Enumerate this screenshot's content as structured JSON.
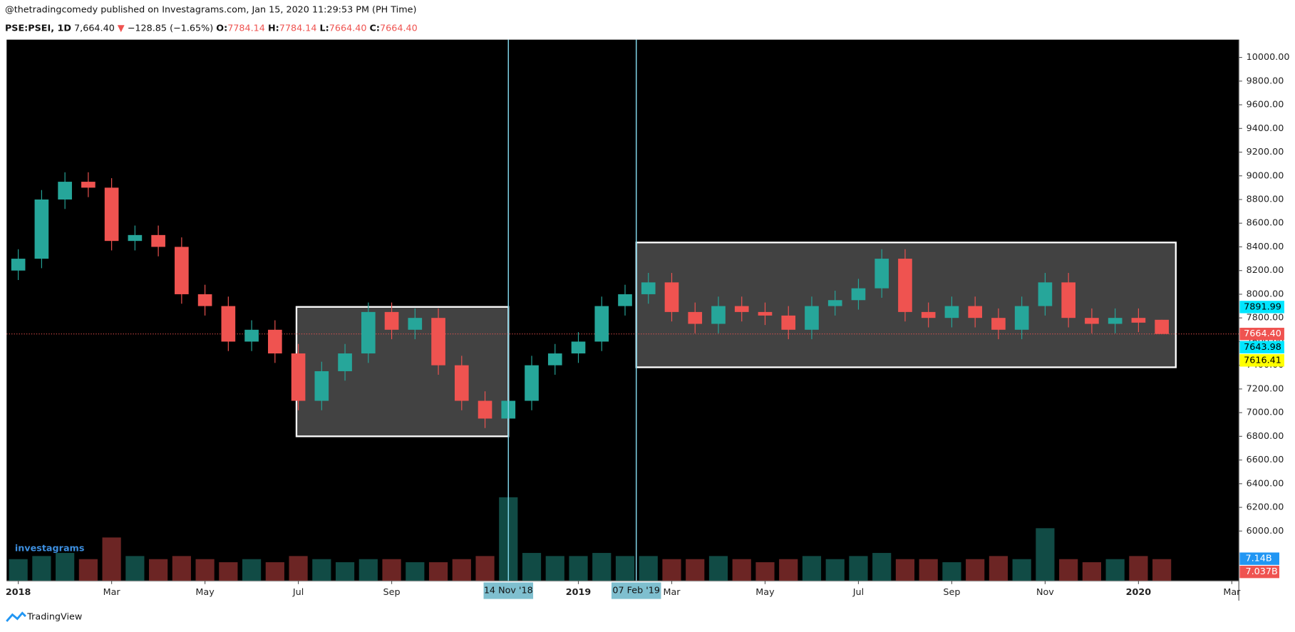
{
  "header": {
    "published": "@thetradingcomedy published on Investagrams.com, Jan 15, 2020 11:29:53 PM (PH Time)",
    "symbol": "PSE:PSEI, 1D",
    "last": "7,664.40",
    "arrow": "▼",
    "change": "−128.85 (−1.65%)",
    "o_label": "O:",
    "o": "7784.14",
    "h_label": "H:",
    "h": "7784.14",
    "l_label": "L:",
    "l": "7664.40",
    "c_label": "C:",
    "c": "7664.40"
  },
  "logo": "investagrams",
  "footer": "TradingView",
  "chart_data": {
    "type": "candlestick",
    "x": [
      0,
      0.5,
      1,
      1.5,
      2,
      2.5,
      3,
      3.5,
      4,
      4.5,
      5,
      5.5,
      6,
      6.5,
      7,
      7.5,
      8,
      8.5,
      9,
      9.5,
      10,
      10.5,
      11,
      11.5,
      12,
      12.5,
      13,
      13.5,
      14,
      14.5,
      15,
      15.5,
      16,
      16.5,
      17,
      17.5,
      18,
      18.5,
      19,
      19.5,
      20,
      20.5,
      21,
      21.5,
      22,
      22.5,
      23,
      23.5,
      24,
      24.5
    ],
    "open": [
      8200,
      8300,
      8800,
      8950,
      8900,
      8450,
      8500,
      8400,
      8000,
      7900,
      7600,
      7700,
      7500,
      7100,
      7350,
      7500,
      7850,
      7700,
      7800,
      7400,
      7100,
      6950,
      7100,
      7400,
      7500,
      7600,
      7900,
      8000,
      8100,
      7850,
      7750,
      7900,
      7850,
      7820,
      7700,
      7900,
      7950,
      8050,
      8300,
      7850,
      7800,
      7900,
      7800,
      7700,
      7900,
      8100,
      7800,
      7750,
      7800,
      7784.14
    ],
    "high": [
      8380,
      8880,
      9030,
      9030,
      8980,
      8580,
      8580,
      8480,
      8080,
      7980,
      7780,
      7780,
      7580,
      7430,
      7580,
      7930,
      7930,
      7880,
      7880,
      7480,
      7180,
      7180,
      7480,
      7580,
      7680,
      7980,
      8080,
      8180,
      8180,
      7930,
      7980,
      7980,
      7930,
      7900,
      7980,
      8030,
      8130,
      8380,
      8380,
      7930,
      7980,
      7980,
      7880,
      7980,
      8180,
      8180,
      7880,
      7880,
      7880,
      7784.14
    ],
    "low": [
      8120,
      8220,
      8720,
      8820,
      8370,
      8370,
      8320,
      7920,
      7820,
      7520,
      7520,
      7420,
      7020,
      7020,
      7270,
      7420,
      7620,
      7620,
      7320,
      7020,
      6870,
      6870,
      7020,
      7320,
      7420,
      7520,
      7820,
      7920,
      7770,
      7670,
      7670,
      7770,
      7740,
      7620,
      7620,
      7820,
      7870,
      7970,
      7770,
      7720,
      7720,
      7720,
      7620,
      7620,
      7820,
      7720,
      7670,
      7670,
      7680,
      7664.4
    ],
    "close": [
      8300,
      8800,
      8950,
      8900,
      8450,
      8500,
      8400,
      8000,
      7900,
      7600,
      7700,
      7500,
      7100,
      7350,
      7500,
      7850,
      7700,
      7800,
      7400,
      7100,
      6950,
      7100,
      7400,
      7500,
      7600,
      7900,
      8000,
      8100,
      7850,
      7750,
      7900,
      7850,
      7820,
      7700,
      7900,
      7950,
      8050,
      8300,
      7850,
      7800,
      7900,
      7800,
      7700,
      7900,
      8100,
      7800,
      7750,
      7800,
      7760,
      7664.4
    ],
    "volume": [
      7,
      8,
      9,
      7,
      14,
      8,
      7,
      8,
      7,
      6,
      7,
      6,
      8,
      7,
      6,
      7,
      7,
      6,
      6,
      7,
      8,
      27,
      9,
      8,
      8,
      9,
      8,
      8,
      7,
      7,
      8,
      7,
      6,
      7,
      8,
      7,
      8,
      9,
      7,
      7,
      6,
      7,
      8,
      7,
      17,
      7,
      6,
      7,
      8,
      7
    ],
    "up_color": "#26a69a",
    "down_color": "#ef5350",
    "xlim": [
      -0.25,
      26.15
    ],
    "xticks": [
      {
        "value": 0,
        "label": "2018"
      },
      {
        "value": 2,
        "label": "Mar"
      },
      {
        "value": 4,
        "label": "May"
      },
      {
        "value": 6,
        "label": "Jul"
      },
      {
        "value": 8,
        "label": "Sep"
      },
      {
        "value": 12,
        "label": "2019"
      },
      {
        "value": 14,
        "label": "Mar"
      },
      {
        "value": 16,
        "label": "May"
      },
      {
        "value": 18,
        "label": "Jul"
      },
      {
        "value": 20,
        "label": "Sep"
      },
      {
        "value": 22,
        "label": "Nov"
      },
      {
        "value": 24,
        "label": "2020"
      },
      {
        "value": 26,
        "label": "Mar"
      }
    ],
    "ylim": [
      5580,
      10150
    ],
    "yticks": [
      {
        "value": 6000,
        "label": "6000.00"
      },
      {
        "value": 6200,
        "label": "6200.00"
      },
      {
        "value": 6400,
        "label": "6400.00"
      },
      {
        "value": 6600,
        "label": "6600.00"
      },
      {
        "value": 6800,
        "label": "6800.00"
      },
      {
        "value": 7000,
        "label": "7000.00"
      },
      {
        "value": 7200,
        "label": "7200.00"
      },
      {
        "value": 7400,
        "label": "7400.00"
      },
      {
        "value": 7600,
        "label": "7600.00"
      },
      {
        "value": 7800,
        "label": "7800.00"
      },
      {
        "value": 8000,
        "label": "8000.00"
      },
      {
        "value": 8200,
        "label": "8200.00"
      },
      {
        "value": 8400,
        "label": "8400.00"
      },
      {
        "value": 8600,
        "label": "8600.00"
      },
      {
        "value": 8800,
        "label": "8800.00"
      },
      {
        "value": 9000,
        "label": "9000.00"
      },
      {
        "value": 9200,
        "label": "9200.00"
      },
      {
        "value": 9400,
        "label": "9400.00"
      },
      {
        "value": 9600,
        "label": "9600.00"
      },
      {
        "value": 9800,
        "label": "9800.00"
      },
      {
        "value": 10000,
        "label": "10000.00"
      }
    ],
    "y2lim": [
      0,
      175
    ],
    "markers": [
      {
        "x": 10.5,
        "label": "14 Nov '18"
      },
      {
        "x": 13.24,
        "label": "07 Feb '19"
      }
    ],
    "boxes": [
      {
        "x": [
          5.96,
          10.5
        ],
        "y": [
          6800,
          7893
        ]
      },
      {
        "x": [
          13.24,
          24.8
        ],
        "y": [
          7383,
          8437
        ]
      }
    ],
    "price_line": 7664.4,
    "price_labels": [
      {
        "value": 7891.99,
        "color": "#00e5ff"
      },
      {
        "value": 7664.4,
        "label": "7664.40",
        "color": "#ef5350"
      },
      {
        "value": 7643.98,
        "color": "#00e5ff"
      },
      {
        "value": 7616.41,
        "color": "#ffff00"
      }
    ],
    "volume_labels": [
      {
        "value": 7.14,
        "label": "7.14B",
        "color": "#2196f3"
      },
      {
        "value": 7.037,
        "label": "7.037B",
        "color": "#ef5350"
      }
    ]
  }
}
